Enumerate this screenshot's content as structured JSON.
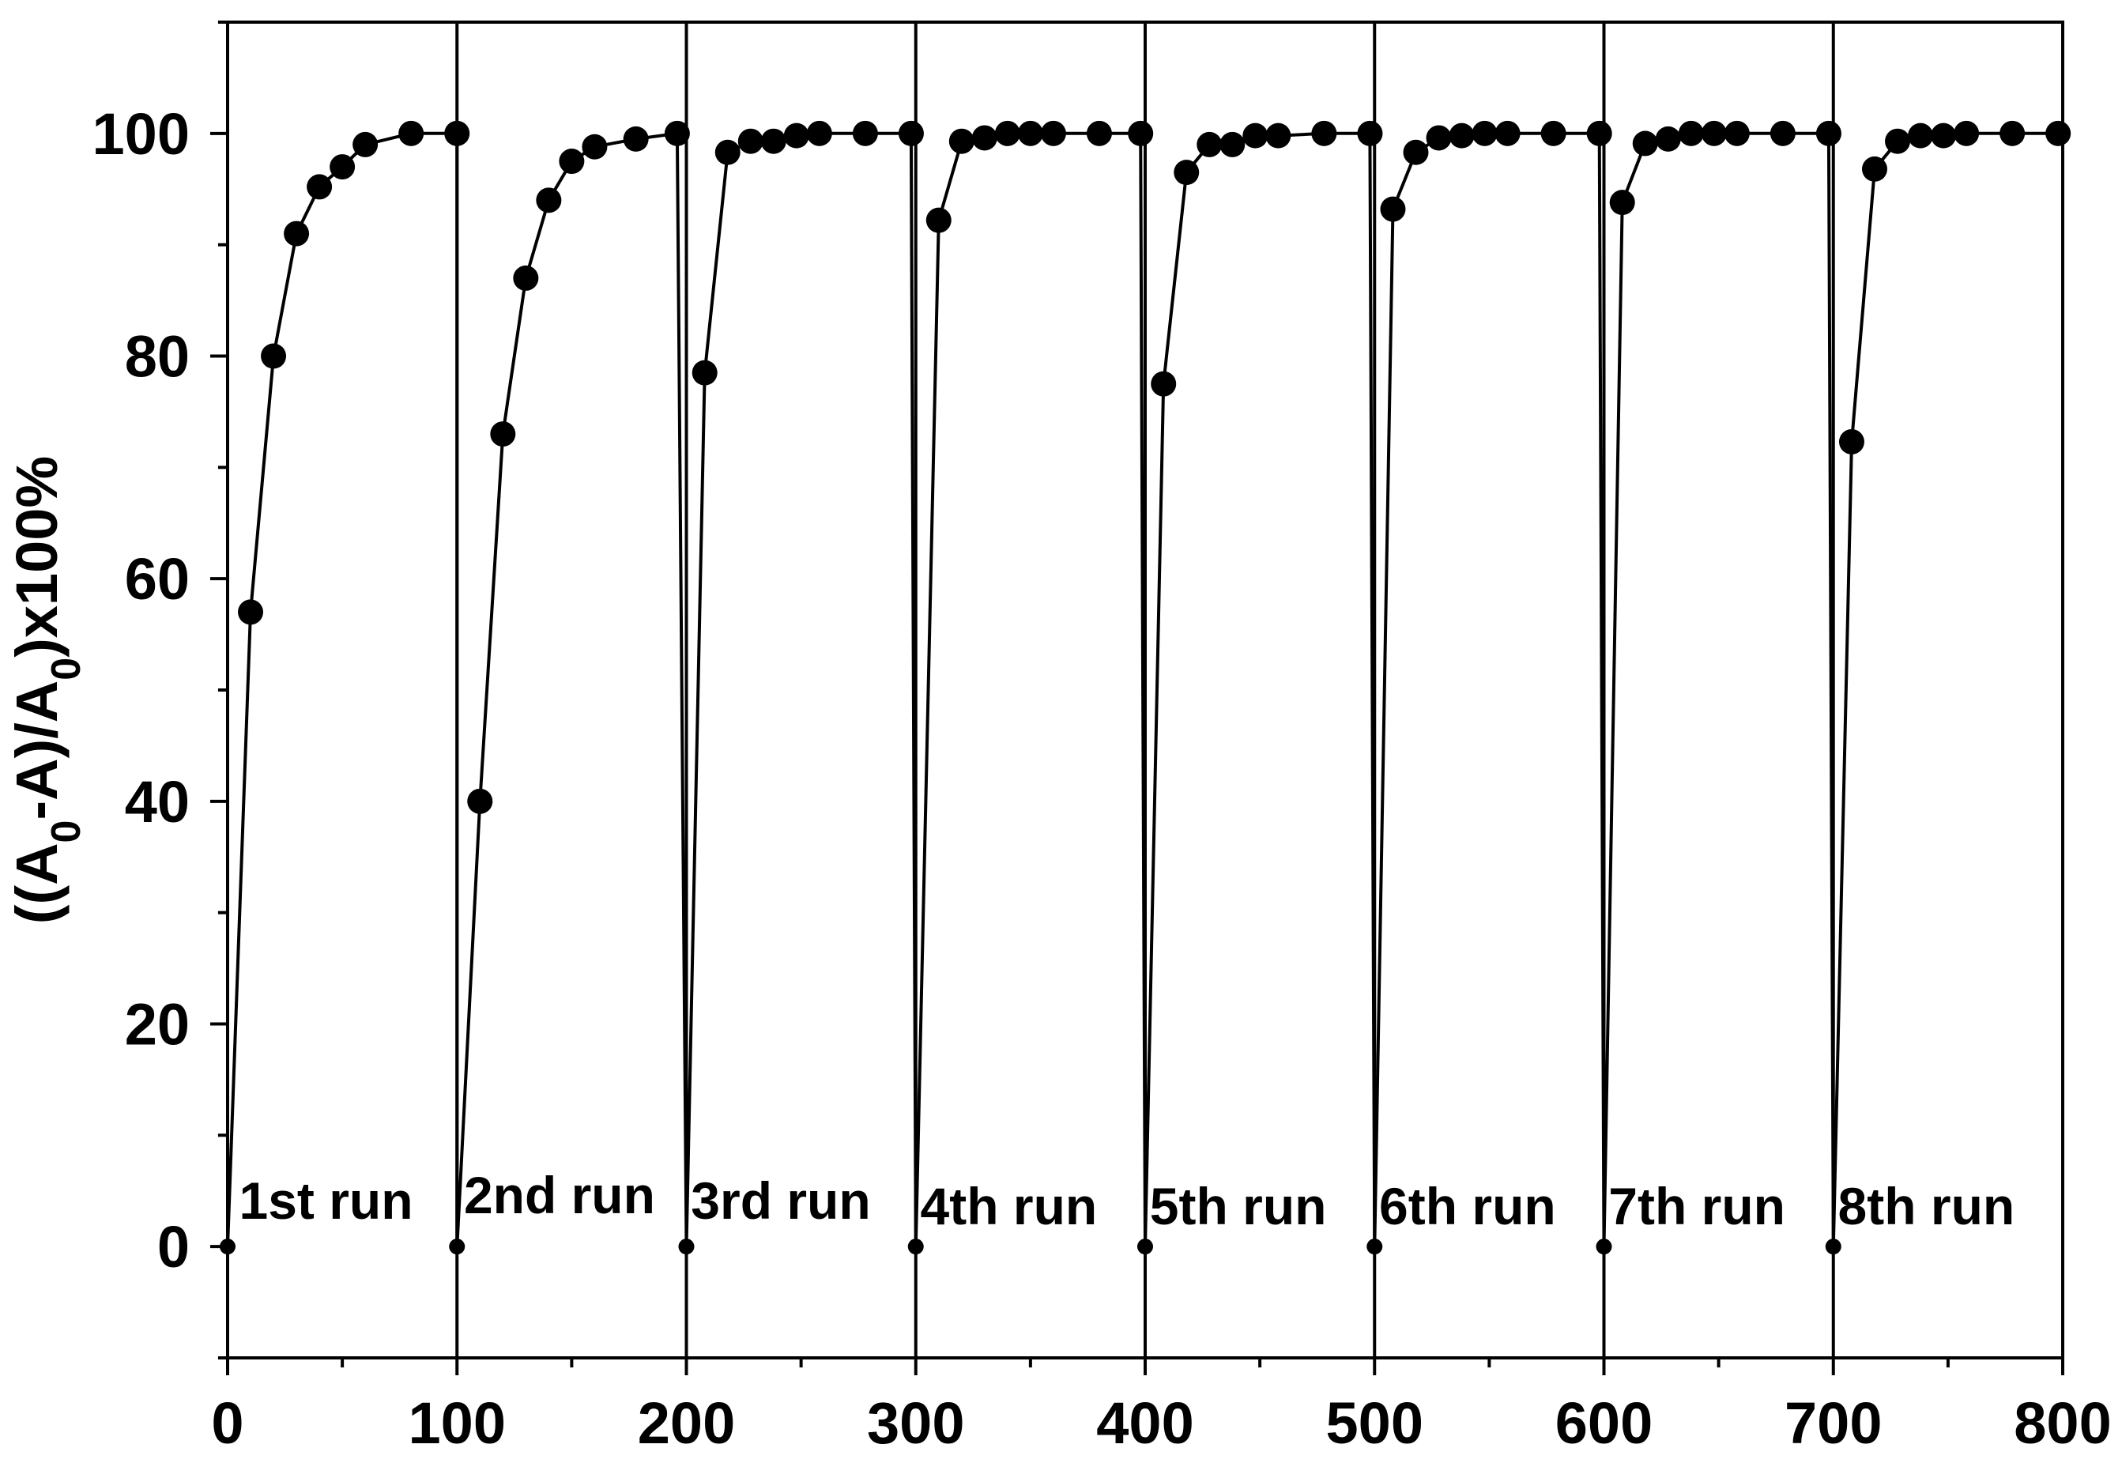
{
  "chart_data": {
    "type": "line",
    "title": "",
    "xlabel": "",
    "ylabel_parts": [
      {
        "text": "((A",
        "sub": false
      },
      {
        "text": "0",
        "sub": true
      },
      {
        "text": "-A)/A",
        "sub": false
      },
      {
        "text": "0",
        "sub": true
      },
      {
        "text": ")x100%",
        "sub": false
      }
    ],
    "xlim": [
      0,
      800
    ],
    "ylim": [
      -10,
      110
    ],
    "xticks": [
      0,
      100,
      200,
      300,
      400,
      500,
      600,
      700,
      800
    ],
    "xtick_labels": [
      "0",
      "100",
      "200",
      "300",
      "400",
      "500",
      "600",
      "700",
      "800"
    ],
    "yticks": [
      0,
      20,
      40,
      60,
      80,
      100
    ],
    "ytick_labels": [
      "0",
      "20",
      "40",
      "60",
      "80",
      "100"
    ],
    "run_separators": [
      100,
      200,
      300,
      400,
      500,
      600,
      700
    ],
    "run_labels": [
      {
        "text": "1st run",
        "x": 5,
        "y": 2.5
      },
      {
        "text": "2nd run",
        "x": 103,
        "y": 3.0
      },
      {
        "text": "3rd run",
        "x": 202,
        "y": 2.5
      },
      {
        "text": "4th run",
        "x": 302,
        "y": 2.0
      },
      {
        "text": "5th run",
        "x": 402,
        "y": 2.0
      },
      {
        "text": "6th run",
        "x": 502,
        "y": 2.0
      },
      {
        "text": "7th run",
        "x": 602,
        "y": 2.0
      },
      {
        "text": "8th run",
        "x": 702,
        "y": 2.0
      }
    ],
    "series": [
      {
        "x": [
          0,
          10,
          20,
          30,
          40,
          50,
          60,
          80,
          100,
          100,
          110,
          120,
          130,
          140,
          150,
          160,
          178,
          196,
          200,
          208,
          218,
          228,
          238,
          248,
          258,
          278,
          298,
          300,
          310,
          320,
          330,
          340,
          350,
          360,
          380,
          398,
          400,
          408,
          418,
          428,
          438,
          448,
          458,
          478,
          498,
          500,
          508,
          518,
          528,
          538,
          548,
          558,
          578,
          598,
          600,
          608,
          618,
          628,
          638,
          648,
          658,
          678,
          698,
          700,
          708,
          718,
          728,
          738,
          748,
          758,
          778,
          798
        ],
        "y": [
          0,
          57,
          80,
          91,
          95.2,
          97,
          99,
          100,
          100,
          0,
          40,
          73,
          87,
          94,
          97.5,
          98.8,
          99.5,
          100,
          0,
          78.5,
          98.3,
          99.3,
          99.3,
          99.8,
          100,
          100,
          100,
          0,
          92.2,
          99.3,
          99.6,
          100,
          100,
          100,
          100,
          100,
          0,
          77.5,
          96.5,
          99,
          99,
          99.8,
          99.8,
          100,
          100,
          0,
          93.2,
          98.3,
          99.6,
          99.8,
          100,
          100,
          100,
          100,
          0,
          93.8,
          99.1,
          99.5,
          100,
          100,
          100,
          100,
          100,
          0,
          72.3,
          96.8,
          99.3,
          99.8,
          99.8,
          100,
          100,
          100
        ],
        "marker_small": [
          0,
          9,
          18,
          27,
          36,
          45,
          54,
          63
        ]
      }
    ],
    "grid": false,
    "legend": false
  }
}
